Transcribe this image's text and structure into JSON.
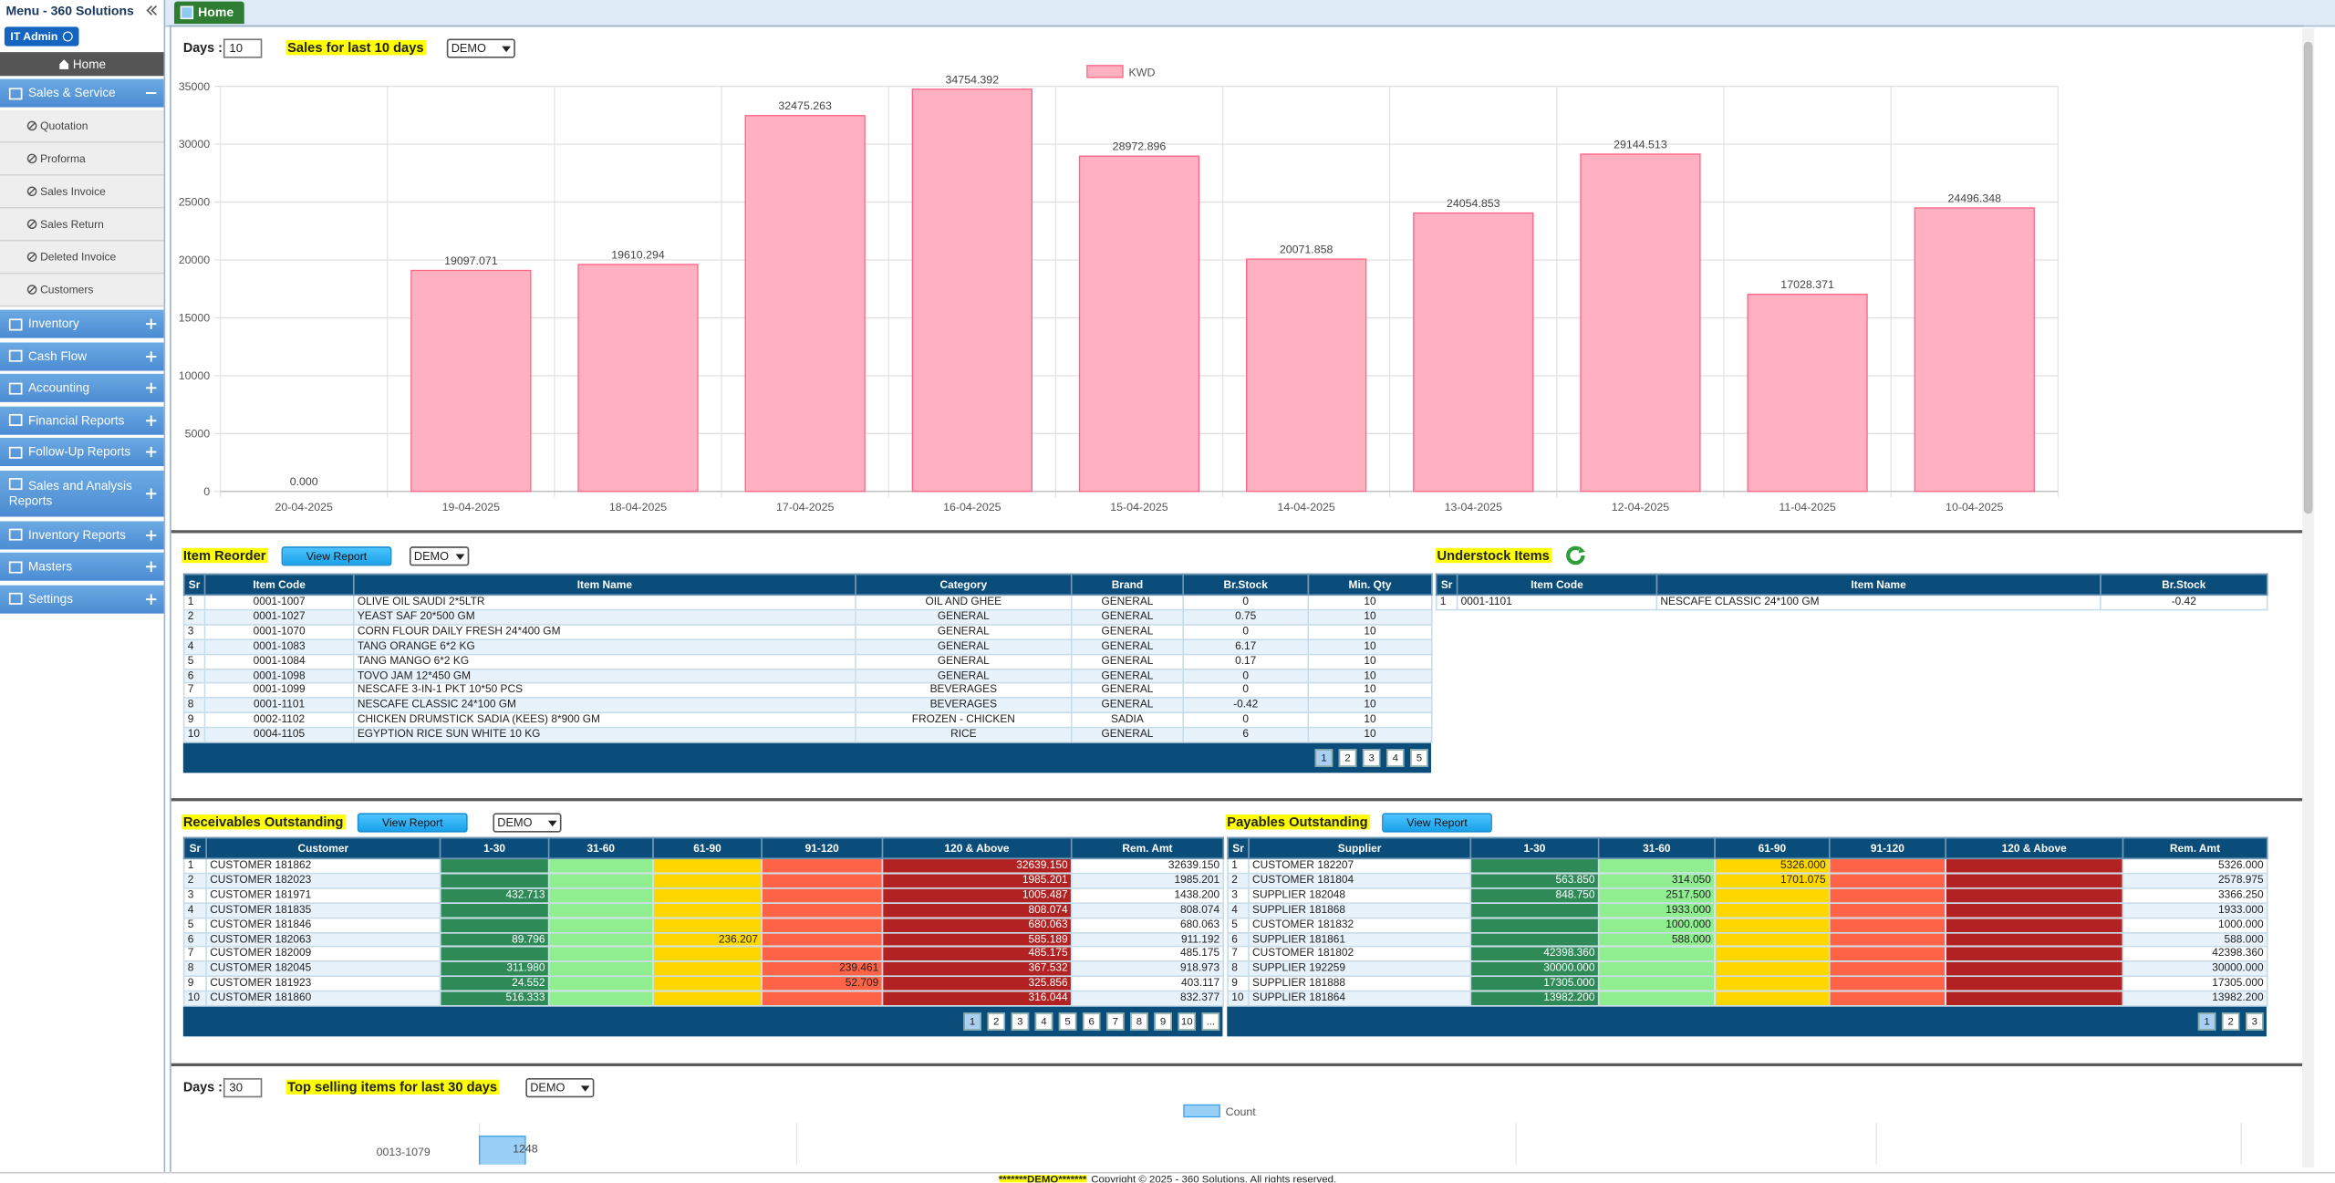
{
  "sidebar": {
    "title": "Menu - 360 Solutions",
    "user": "IT Admin",
    "home": "Home",
    "menu": [
      {
        "label": "Sales & Service",
        "expanded": true,
        "items": [
          "Quotation",
          "Proforma",
          "Sales Invoice",
          "Sales Return",
          "Deleted Invoice",
          "Customers"
        ]
      },
      {
        "label": "Inventory"
      },
      {
        "label": "Cash Flow"
      },
      {
        "label": "Accounting"
      },
      {
        "label": "Financial Reports"
      },
      {
        "label": "Follow-Up Reports"
      },
      {
        "label": "Sales and Analysis Reports"
      },
      {
        "label": "Inventory Reports"
      },
      {
        "label": "Masters"
      },
      {
        "label": "Settings"
      }
    ]
  },
  "tab": "Home",
  "sales_controls": {
    "days_label": "Days :",
    "days": "10",
    "select": "DEMO"
  },
  "top_controls": {
    "days_label": "Days :",
    "days": "30",
    "select": "DEMO"
  },
  "chart_data": [
    {
      "type": "bar",
      "title": "Sales for last 10 days",
      "categories": [
        "20-04-2025",
        "19-04-2025",
        "18-04-2025",
        "17-04-2025",
        "16-04-2025",
        "15-04-2025",
        "14-04-2025",
        "13-04-2025",
        "12-04-2025",
        "11-04-2025",
        "10-04-2025"
      ],
      "series": [
        {
          "name": "KWD",
          "color": "#ffb1c1",
          "border_color": "#ff6384",
          "values": [
            0,
            19097.071,
            19610.294,
            32475.263,
            34754.392,
            28972.896,
            20071.858,
            24054.853,
            29144.513,
            17028.371,
            24496.348
          ],
          "value_labels": [
            "0.000",
            "19097.071",
            "19610.294",
            "32475.263",
            "34754.392",
            "28972.896",
            "20071.858",
            "24054.853",
            "29144.513",
            "17028.371",
            "24496.348"
          ]
        }
      ],
      "ylim": [
        0,
        35000
      ],
      "yticks": [
        0,
        5000,
        10000,
        15000,
        20000,
        25000,
        30000,
        35000
      ],
      "grid": true,
      "legend": "top"
    },
    {
      "type": "hbar",
      "title": "Top selling items for last 30 days",
      "categories": [
        "0013-1079"
      ],
      "series": [
        {
          "name": "Count",
          "color": "#9ad0f5",
          "border_color": "#36a2eb",
          "values": [
            1248
          ]
        }
      ],
      "xlim": [
        0,
        48000
      ],
      "legend": "top"
    }
  ],
  "item_reorder": {
    "title": "Item Reorder",
    "button": "View Report",
    "select": "DEMO",
    "headers": [
      "Sr",
      "Item Code",
      "Item Name",
      "Category",
      "Brand",
      "Br.Stock",
      "Min. Qty"
    ],
    "rows": [
      [
        "1",
        "0001-1007",
        "OLIVE OIL SAUDI 2*5LTR",
        "OIL AND GHEE",
        "GENERAL",
        "0",
        "10"
      ],
      [
        "2",
        "0001-1027",
        "YEAST SAF 20*500 GM",
        "GENERAL",
        "GENERAL",
        "0.75",
        "10"
      ],
      [
        "3",
        "0001-1070",
        "CORN FLOUR DAILY FRESH 24*400 GM",
        "GENERAL",
        "GENERAL",
        "0",
        "10"
      ],
      [
        "4",
        "0001-1083",
        "TANG ORANGE 6*2 KG",
        "GENERAL",
        "GENERAL",
        "6.17",
        "10"
      ],
      [
        "5",
        "0001-1084",
        "TANG MANGO 6*2 KG",
        "GENERAL",
        "GENERAL",
        "0.17",
        "10"
      ],
      [
        "6",
        "0001-1098",
        "TOVO JAM 12*450 GM",
        "GENERAL",
        "GENERAL",
        "0",
        "10"
      ],
      [
        "7",
        "0001-1099",
        "NESCAFE 3-IN-1 PKT 10*50 PCS",
        "BEVERAGES",
        "GENERAL",
        "0",
        "10"
      ],
      [
        "8",
        "0001-1101",
        "NESCAFE CLASSIC 24*100 GM",
        "BEVERAGES",
        "GENERAL",
        "-0.42",
        "10"
      ],
      [
        "9",
        "0002-1102",
        "CHICKEN DRUMSTICK SADIA (KEES) 8*900 GM",
        "FROZEN - CHICKEN",
        "SADIA",
        "0",
        "10"
      ],
      [
        "10",
        "0004-1105",
        "EGYPTION RICE SUN WHITE 10 KG",
        "RICE",
        "GENERAL",
        "6",
        "10"
      ]
    ],
    "pages": [
      "1",
      "2",
      "3",
      "4",
      "5"
    ]
  },
  "understock": {
    "title": "Understock Items",
    "headers": [
      "Sr",
      "Item Code",
      "Item Name",
      "Br.Stock"
    ],
    "rows": [
      [
        "1",
        "0001-1101",
        "NESCAFE CLASSIC 24*100 GM",
        "-0.42"
      ]
    ]
  },
  "receivables": {
    "title": "Receivables Outstanding",
    "button": "View Report",
    "select": "DEMO",
    "headers": [
      "Sr",
      "Customer",
      "1-30",
      "31-60",
      "61-90",
      "91-120",
      "120 & Above",
      "Rem. Amt"
    ],
    "rows": [
      [
        "1",
        "CUSTOMER 181862",
        null,
        null,
        null,
        null,
        "32639.150",
        "32639.150"
      ],
      [
        "2",
        "CUSTOMER 182023",
        null,
        null,
        null,
        null,
        "1985.201",
        "1985.201"
      ],
      [
        "3",
        "CUSTOMER 181971",
        "432.713",
        null,
        null,
        null,
        "1005.487",
        "1438.200"
      ],
      [
        "4",
        "CUSTOMER 181835",
        null,
        null,
        null,
        null,
        "808.074",
        "808.074"
      ],
      [
        "5",
        "CUSTOMER 181846",
        null,
        null,
        null,
        null,
        "680.063",
        "680.063"
      ],
      [
        "6",
        "CUSTOMER 182063",
        "89.796",
        null,
        "236.207",
        null,
        "585.189",
        "911.192"
      ],
      [
        "7",
        "CUSTOMER 182009",
        null,
        null,
        null,
        null,
        "485.175",
        "485.175"
      ],
      [
        "8",
        "CUSTOMER 182045",
        "311.980",
        null,
        null,
        "239.461",
        "367.532",
        "918.973"
      ],
      [
        "9",
        "CUSTOMER 181923",
        "24.552",
        null,
        null,
        "52.709",
        "325.856",
        "403.117"
      ],
      [
        "10",
        "CUSTOMER 181860",
        "516.333",
        null,
        null,
        null,
        "316.044",
        "832.377"
      ]
    ],
    "pages": [
      "1",
      "2",
      "3",
      "4",
      "5",
      "6",
      "7",
      "8",
      "9",
      "10",
      "..."
    ]
  },
  "payables": {
    "title": "Payables Outstanding",
    "button": "View Report",
    "headers": [
      "Sr",
      "Supplier",
      "1-30",
      "31-60",
      "61-90",
      "91-120",
      "120 & Above",
      "Rem. Amt"
    ],
    "rows": [
      [
        "1",
        "CUSTOMER 182207",
        null,
        null,
        "5326.000",
        null,
        null,
        "5326.000"
      ],
      [
        "2",
        "CUSTOMER 181804",
        "563.850",
        "314.050",
        "1701.075",
        null,
        null,
        "2578.975"
      ],
      [
        "3",
        "SUPPLIER 182048",
        "848.750",
        "2517.500",
        null,
        null,
        null,
        "3366.250"
      ],
      [
        "4",
        "SUPPLIER 181868",
        null,
        "1933.000",
        null,
        null,
        null,
        "1933.000"
      ],
      [
        "5",
        "CUSTOMER 181832",
        null,
        "1000.000",
        null,
        null,
        null,
        "1000.000"
      ],
      [
        "6",
        "SUPPLIER 181861",
        null,
        "588.000",
        null,
        null,
        null,
        "588.000"
      ],
      [
        "7",
        "CUSTOMER 181802",
        "42398.360",
        null,
        null,
        null,
        null,
        "42398.360"
      ],
      [
        "8",
        "SUPPLIER 192259",
        "30000.000",
        null,
        null,
        null,
        null,
        "30000.000"
      ],
      [
        "9",
        "SUPPLIER 181888",
        "17305.000",
        null,
        null,
        null,
        null,
        "17305.000"
      ],
      [
        "10",
        "SUPPLIER 181864",
        "13982.200",
        null,
        null,
        null,
        null,
        "13982.200"
      ]
    ],
    "pages": [
      "1",
      "2",
      "3"
    ]
  },
  "footer": {
    "demo": "*******DEMO*******",
    "copyright": "Copyright © 2025 - 360 Solutions. All rights reserved."
  }
}
